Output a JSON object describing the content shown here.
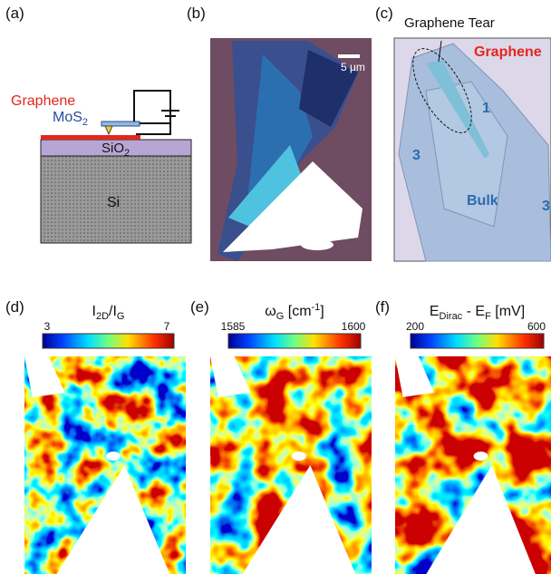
{
  "panel_a": {
    "label": "(a)",
    "graphene": "Graphene",
    "mos2": [
      {
        "t": "MoS"
      },
      {
        "t": "2",
        "s": "sub"
      }
    ],
    "sio2": [
      {
        "t": "SiO"
      },
      {
        "t": "2",
        "s": "sub"
      }
    ],
    "si": "Si"
  },
  "panel_b": {
    "label": "(b)",
    "scale_bar": "5 μm"
  },
  "panel_c": {
    "label": "(c)",
    "tear": "Graphene Tear",
    "graphene": "Graphene",
    "regions": [
      "1",
      "3",
      "Bulk",
      "3"
    ]
  },
  "panel_d": {
    "label": "(d)",
    "title": [
      {
        "t": "I"
      },
      {
        "t": "2D",
        "s": "sub"
      },
      {
        "t": "/I"
      },
      {
        "t": "G",
        "s": "sub"
      }
    ],
    "ticks": [
      3,
      7
    ]
  },
  "panel_e": {
    "label": "(e)",
    "title": [
      {
        "t": "ω"
      },
      {
        "t": "G",
        "s": "sub"
      },
      {
        "t": " [cm"
      },
      {
        "t": "-1",
        "s": "sup"
      },
      {
        "t": "]"
      }
    ],
    "ticks": [
      1585,
      1600
    ]
  },
  "panel_f": {
    "label": "(f)",
    "title": [
      {
        "t": "E"
      },
      {
        "t": "Dirac",
        "s": "sub"
      },
      {
        "t": " - E"
      },
      {
        "t": "F",
        "s": "sub"
      },
      {
        "t": " [mV]"
      }
    ],
    "ticks": [
      200,
      600
    ]
  }
}
